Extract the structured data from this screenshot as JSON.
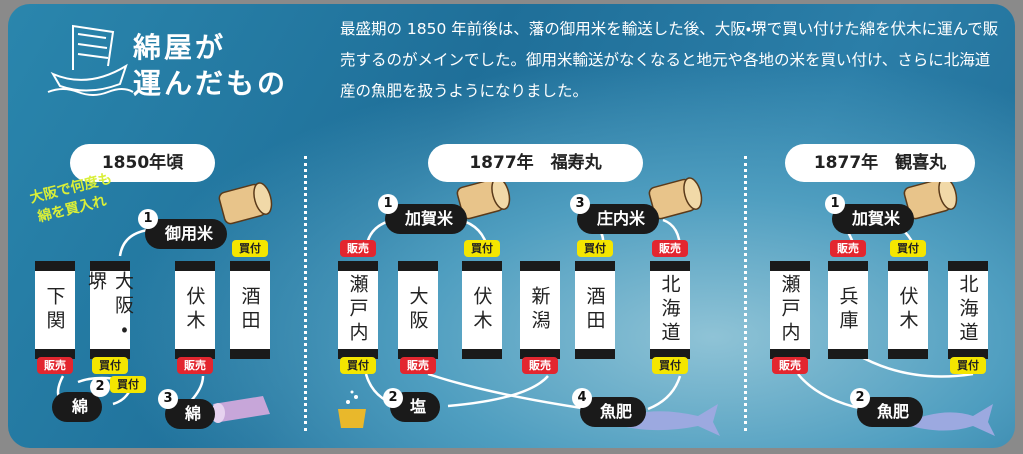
{
  "header": {
    "title_line1": "綿屋が",
    "title_line2": "運んだもの",
    "intro": "最盛期の 1850 年前後は、藩の御用米を輸送した後、大阪・堺で買い付けた綿を伏木に運んで販売するのがメインでした。御用米輸送がなくなると地元や各地の米を買い付け、さらに北海道産の魚肥を扱うようになりました。"
  },
  "panels": [
    {
      "heading": "1850年頃",
      "note": [
        "大阪で何度も",
        "綿を買入れ"
      ],
      "ports": [
        "下関",
        "大阪・堺",
        "伏木",
        "酒田"
      ],
      "badges": [
        {
          "text": "販売",
          "color": "#e3262f"
        },
        {
          "text": "買付",
          "color": "#f4e600"
        },
        {
          "text": "販売",
          "color": "#e3262f"
        },
        {
          "text": "買付",
          "color": "#f4e600"
        },
        {
          "text": "買付",
          "color": "#f4e600"
        }
      ],
      "steps": [
        {
          "number": "1",
          "label": "御用米"
        },
        {
          "number": "2",
          "label": "綿"
        },
        {
          "number": "3",
          "label": "綿"
        }
      ]
    },
    {
      "heading": "1877年　福寿丸",
      "ports": [
        "瀬戸内",
        "大阪",
        "伏木",
        "新潟",
        "酒田",
        "北海道"
      ],
      "badges": [
        {
          "text": "販売",
          "color": "#e3262f"
        },
        {
          "text": "買付",
          "color": "#f4e600"
        },
        {
          "text": "販売",
          "color": "#e3262f"
        },
        {
          "text": "買付",
          "color": "#f4e600"
        },
        {
          "text": "販売",
          "color": "#e3262f"
        },
        {
          "text": "買付",
          "color": "#f4e600"
        },
        {
          "text": "販売",
          "color": "#e3262f"
        },
        {
          "text": "買付",
          "color": "#f4e600"
        }
      ],
      "steps": [
        {
          "number": "1",
          "label": "加賀米"
        },
        {
          "number": "2",
          "label": "塩"
        },
        {
          "number": "3",
          "label": "庄内米"
        },
        {
          "number": "4",
          "label": "魚肥"
        }
      ]
    },
    {
      "heading": "1877年　観喜丸",
      "ports": [
        "瀬戸内",
        "兵庫",
        "伏木",
        "北海道"
      ],
      "badges": [
        {
          "text": "販売",
          "color": "#e3262f"
        },
        {
          "text": "販売",
          "color": "#e3262f"
        },
        {
          "text": "買付",
          "color": "#f4e600"
        },
        {
          "text": "買付",
          "color": "#f4e600"
        }
      ],
      "steps": [
        {
          "number": "1",
          "label": "加賀米"
        },
        {
          "number": "2",
          "label": "魚肥"
        }
      ]
    }
  ]
}
